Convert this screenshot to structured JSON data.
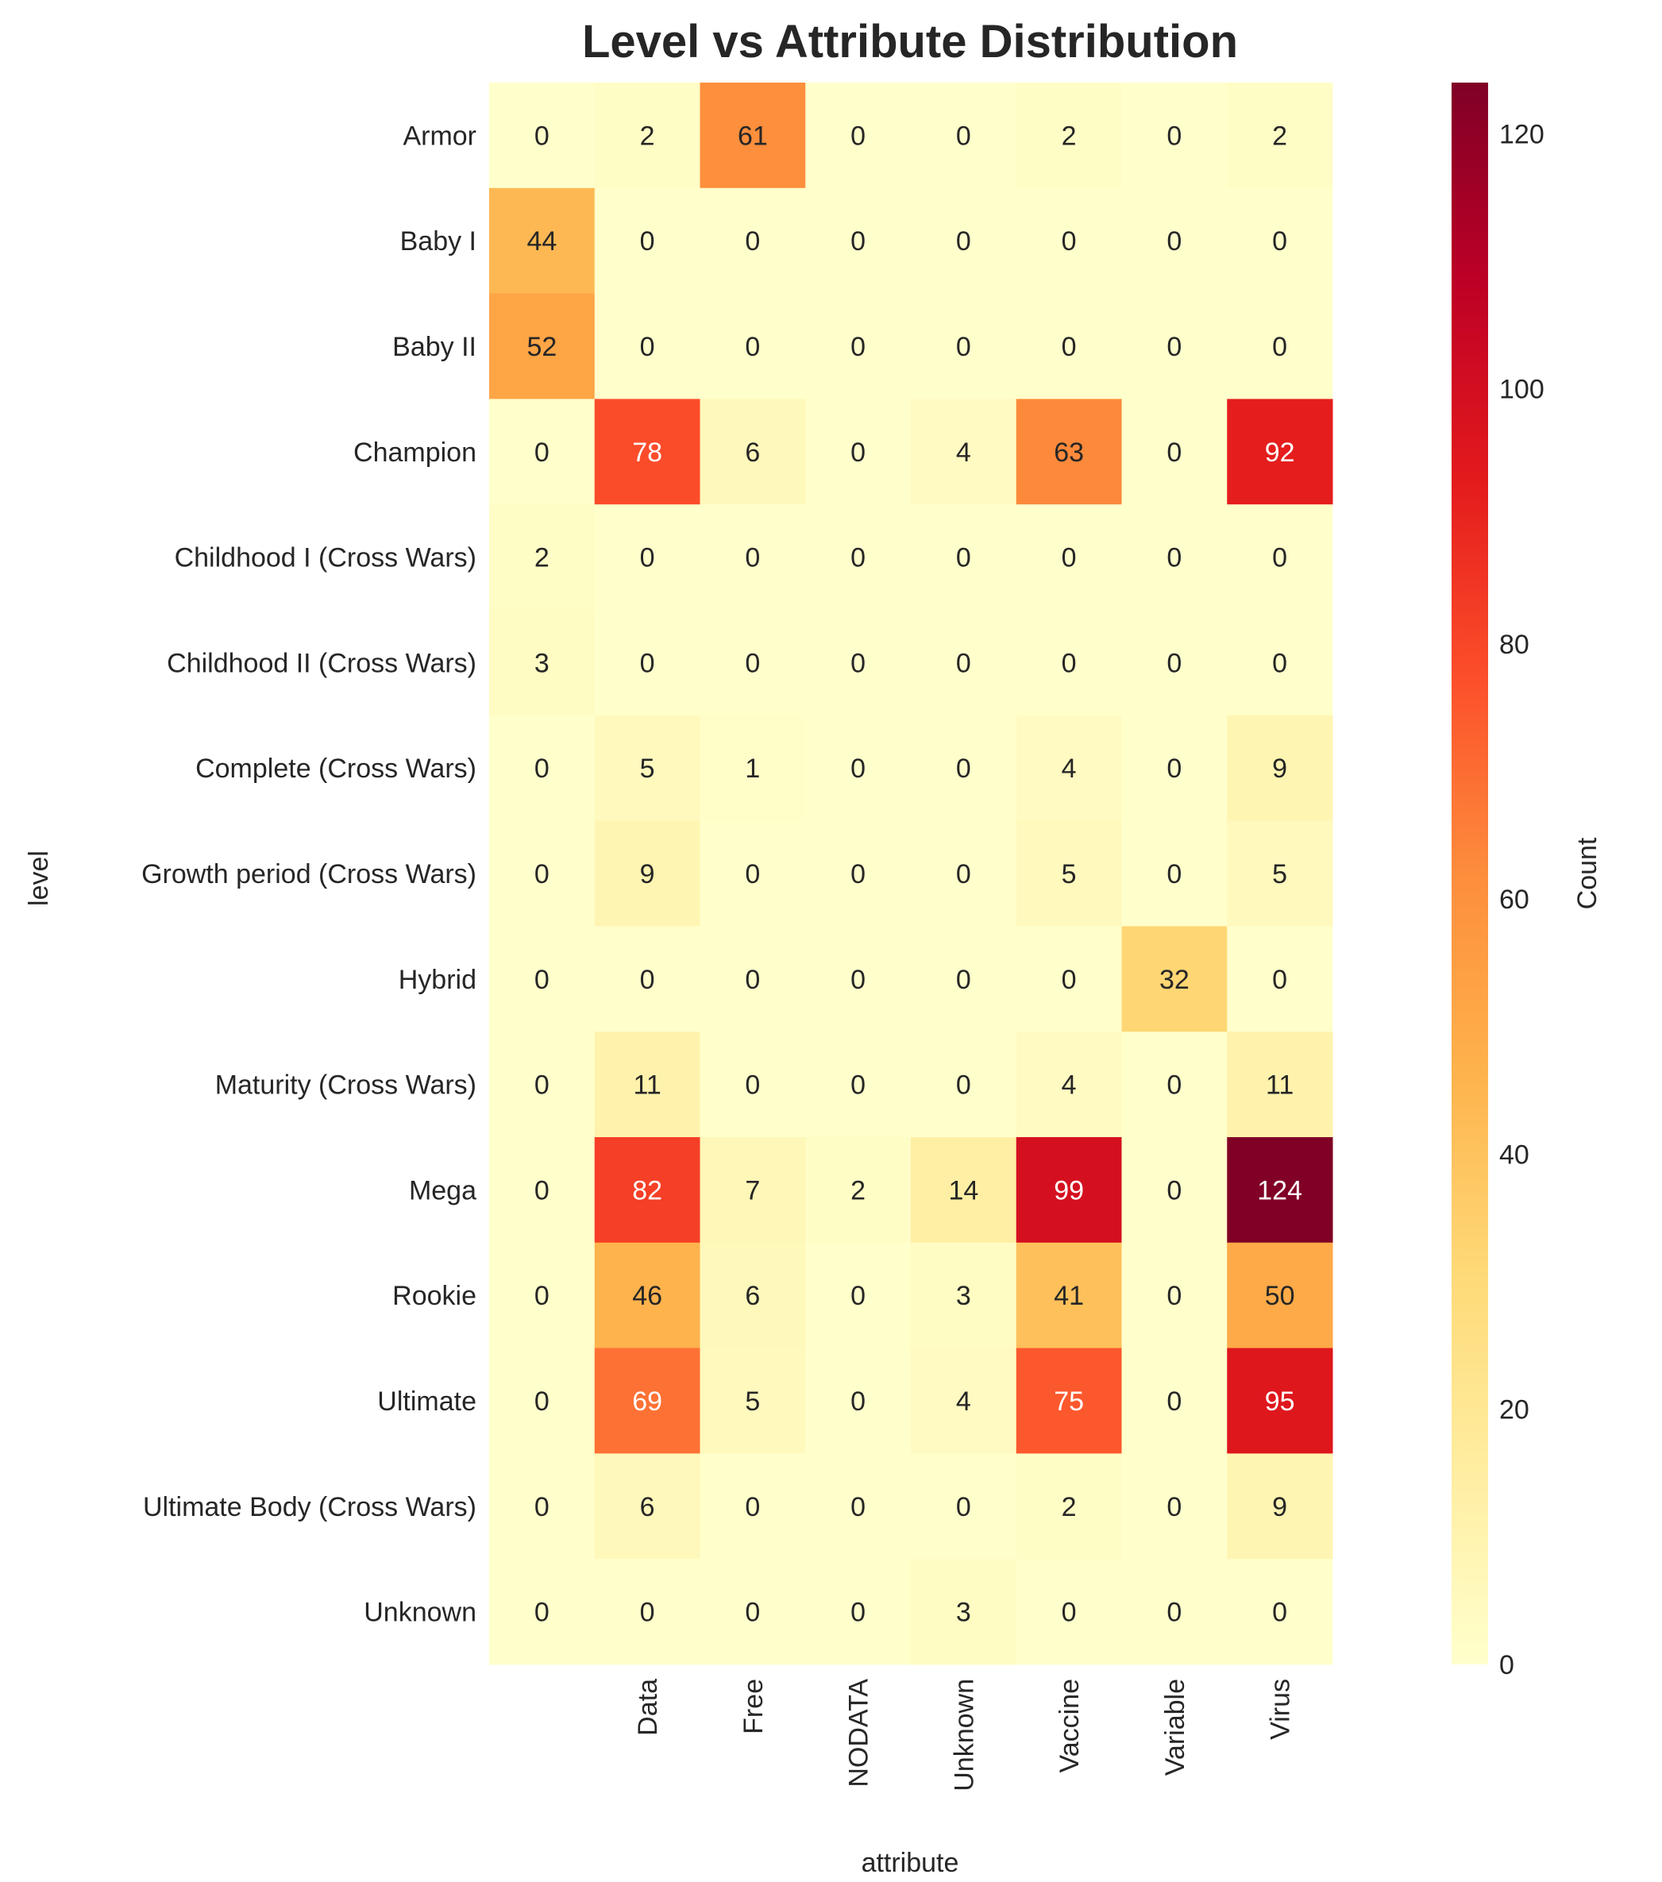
{
  "chart_data": {
    "type": "heatmap",
    "title": "Level vs Attribute Distribution",
    "xlabel": "attribute",
    "ylabel": "level",
    "colorbar_label": "Count",
    "colorbar_ticks": [
      0,
      20,
      40,
      60,
      80,
      100,
      120
    ],
    "colorbar_range": [
      0,
      124
    ],
    "colormap": "YlOrRd",
    "colormap_stops": [
      "#ffffcc",
      "#ffeda0",
      "#fed976",
      "#feb24c",
      "#fd8d3c",
      "#fc4e2a",
      "#e31a1c",
      "#bd0026",
      "#800026"
    ],
    "columns": [
      "",
      "Data",
      "Free",
      "NODATA",
      "Unknown",
      "Vaccine",
      "Variable",
      "Virus"
    ],
    "rows": [
      "Armor",
      "Baby I",
      "Baby II",
      "Champion",
      "Childhood I (Cross Wars)",
      "Childhood II (Cross Wars)",
      "Complete (Cross Wars)",
      "Growth period (Cross Wars)",
      "Hybrid",
      "Maturity (Cross Wars)",
      "Mega",
      "Rookie",
      "Ultimate",
      "Ultimate Body (Cross Wars)",
      "Unknown"
    ],
    "values": [
      [
        0,
        2,
        61,
        0,
        0,
        2,
        0,
        2
      ],
      [
        44,
        0,
        0,
        0,
        0,
        0,
        0,
        0
      ],
      [
        52,
        0,
        0,
        0,
        0,
        0,
        0,
        0
      ],
      [
        0,
        78,
        6,
        0,
        4,
        63,
        0,
        92
      ],
      [
        2,
        0,
        0,
        0,
        0,
        0,
        0,
        0
      ],
      [
        3,
        0,
        0,
        0,
        0,
        0,
        0,
        0
      ],
      [
        0,
        5,
        1,
        0,
        0,
        4,
        0,
        9
      ],
      [
        0,
        9,
        0,
        0,
        0,
        5,
        0,
        5
      ],
      [
        0,
        0,
        0,
        0,
        0,
        0,
        32,
        0
      ],
      [
        0,
        11,
        0,
        0,
        0,
        4,
        0,
        11
      ],
      [
        0,
        82,
        7,
        2,
        14,
        99,
        0,
        124
      ],
      [
        0,
        46,
        6,
        0,
        3,
        41,
        0,
        50
      ],
      [
        0,
        69,
        5,
        0,
        4,
        75,
        0,
        95
      ],
      [
        0,
        6,
        0,
        0,
        0,
        2,
        0,
        9
      ],
      [
        0,
        0,
        0,
        0,
        3,
        0,
        0,
        0
      ]
    ],
    "grid": false,
    "annotations": true
  }
}
